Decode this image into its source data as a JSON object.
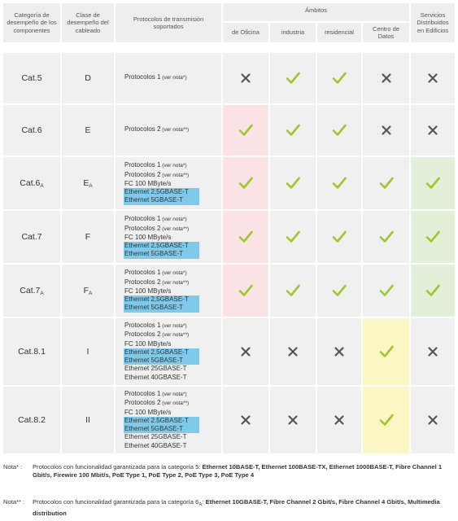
{
  "header": {
    "col_category": "Categoría de desempeño de los componentes",
    "col_class": "Clase de desempeño del cableado",
    "col_protocols": "Protocolos de transmisión soportados",
    "ambitos": "Ámbitos",
    "sub_oficina": "de Oficina",
    "sub_industria": "industria",
    "sub_residencial": "residencial",
    "sub_datacenter": "Centro de Datos",
    "col_services": "Servicios Distribuidos en Edificios"
  },
  "rows": [
    {
      "category": "Cat.5",
      "category_sub": "",
      "class": "D",
      "class_sub": "",
      "protocols": [
        {
          "text": "Protocolos 1",
          "note": "(ver nota*)",
          "highlight": false
        }
      ],
      "marks": [
        "cross",
        "check",
        "check",
        "cross",
        "cross"
      ],
      "fills": [
        "",
        "",
        "",
        "",
        ""
      ]
    },
    {
      "category": "Cat.6",
      "category_sub": "",
      "class": "E",
      "class_sub": "",
      "protocols": [
        {
          "text": "Protocolos 2",
          "note": "(ver nota**)",
          "highlight": false
        }
      ],
      "marks": [
        "check",
        "check",
        "check",
        "cross",
        "cross"
      ],
      "fills": [
        "pink",
        "",
        "",
        "",
        ""
      ]
    },
    {
      "category": "Cat.6",
      "category_sub": "A",
      "class": "E",
      "class_sub": "A",
      "protocols": [
        {
          "text": "Protocolos 1",
          "note": "(ver nota*)",
          "highlight": false
        },
        {
          "text": "Protocolos 2",
          "note": "(ver nota**)",
          "highlight": false
        },
        {
          "text": "FC 100 MByte/s",
          "note": "",
          "highlight": false
        },
        {
          "text": "Ethernet 2,5GBASE-T",
          "note": "",
          "highlight": true
        },
        {
          "text": "Ethernet 5GBASE-T",
          "note": "",
          "highlight": true
        }
      ],
      "marks": [
        "check",
        "check",
        "check",
        "check",
        "check"
      ],
      "fills": [
        "pink",
        "",
        "",
        "",
        "green"
      ]
    },
    {
      "category": "Cat.7",
      "category_sub": "",
      "class": "F",
      "class_sub": "",
      "protocols": [
        {
          "text": "Protocolos 1",
          "note": "(ver nota*)",
          "highlight": false
        },
        {
          "text": "Protocolos 2",
          "note": "(ver nota**)",
          "highlight": false
        },
        {
          "text": "FC 100 MByte/s",
          "note": "",
          "highlight": false
        },
        {
          "text": "Ethernet 2,5GBASE-T",
          "note": "",
          "highlight": true
        },
        {
          "text": "Ethernet 5GBASE-T",
          "note": "",
          "highlight": true
        }
      ],
      "marks": [
        "check",
        "check",
        "check",
        "check",
        "check"
      ],
      "fills": [
        "pink",
        "",
        "",
        "",
        "green"
      ]
    },
    {
      "category": "Cat.7",
      "category_sub": "A",
      "class": "F",
      "class_sub": "A",
      "protocols": [
        {
          "text": "Protocolos 1",
          "note": "(ver nota*)",
          "highlight": false
        },
        {
          "text": "Protocolos 2",
          "note": "(ver nota**)",
          "highlight": false
        },
        {
          "text": "FC 100 MByte/s",
          "note": "",
          "highlight": false
        },
        {
          "text": "Ethernet 2,5GBASE-T",
          "note": "",
          "highlight": true
        },
        {
          "text": "Ethernet 5GBASE-T",
          "note": "",
          "highlight": true
        }
      ],
      "marks": [
        "check",
        "check",
        "check",
        "check",
        "check"
      ],
      "fills": [
        "pink",
        "",
        "",
        "",
        "green"
      ]
    },
    {
      "category": "Cat.8.1",
      "category_sub": "",
      "class": "I",
      "class_sub": "",
      "protocols": [
        {
          "text": "Protocolos 1",
          "note": "(ver nota*)",
          "highlight": false
        },
        {
          "text": "Protocolos 2",
          "note": "(ver nota**)",
          "highlight": false
        },
        {
          "text": "FC 100 MByte/s",
          "note": "",
          "highlight": false
        },
        {
          "text": "Ethernet 2,5GBASE-T",
          "note": "",
          "highlight": true
        },
        {
          "text": "Ethernet 5GBASE-T",
          "note": "",
          "highlight": true
        },
        {
          "text": "Ethernet 25GBASE-T",
          "note": "",
          "highlight": false
        },
        {
          "text": "Ethernet 40GBASE-T",
          "note": "",
          "highlight": false
        }
      ],
      "marks": [
        "cross",
        "cross",
        "cross",
        "check",
        "cross"
      ],
      "fills": [
        "",
        "",
        "",
        "yellow",
        ""
      ]
    },
    {
      "category": "Cat.8.2",
      "category_sub": "",
      "class": "II",
      "class_sub": "",
      "protocols": [
        {
          "text": "Protocolos 1",
          "note": "(ver nota*)",
          "highlight": false
        },
        {
          "text": "Protocolos 2",
          "note": "(ver nota**)",
          "highlight": false
        },
        {
          "text": "FC 100 MByte/s",
          "note": "",
          "highlight": false
        },
        {
          "text": "Ethernet 2.5GBASE-T",
          "note": "",
          "highlight": true
        },
        {
          "text": "Ethernet 5GBASE-T",
          "note": "",
          "highlight": true
        },
        {
          "text": "Ethernet 25GBASE-T",
          "note": "",
          "highlight": false
        },
        {
          "text": "Ethernet 40GBASE-T",
          "note": "",
          "highlight": false
        }
      ],
      "marks": [
        "cross",
        "cross",
        "cross",
        "check",
        "cross"
      ],
      "fills": [
        "",
        "",
        "",
        "yellow",
        ""
      ]
    }
  ],
  "notes": [
    {
      "label": "Nota*   :",
      "intro": "Protocolos con funcionalidad garantizada para la categoría 5: ",
      "intro_sub": "",
      "intro_tail": "",
      "bold": "Ethernet 10BASE-T, Ethernet 100BASE-TX, Ethernet 1000BASE-T, Fibre Channel 1 Gbit/s, Firewire 100 Mbit/s, PoE Type 1, PoE Type 2, PoE Type 3, PoE Type 4"
    },
    {
      "label": "Nota**  :",
      "intro": "Protocolos con funcionalidad garantizada para la categoría 6",
      "intro_sub": "A",
      "intro_tail": ": ",
      "bold": "Ethernet 10GBASE-T, Fibre Channel 2 Gbit/s, Fibre Channel 4 Gbit/s, Multimedia distribution"
    }
  ],
  "icons": {
    "check": "check-icon",
    "cross": "cross-icon"
  },
  "colors": {
    "check": "#9dc82a",
    "cross": "#555555",
    "highlight": "#7fcaea",
    "pink": "#fbe2e4",
    "yellow": "#fbf7c4",
    "green": "#e2efd9",
    "cell": "#f0f0f0",
    "header": "#eeeeee"
  }
}
